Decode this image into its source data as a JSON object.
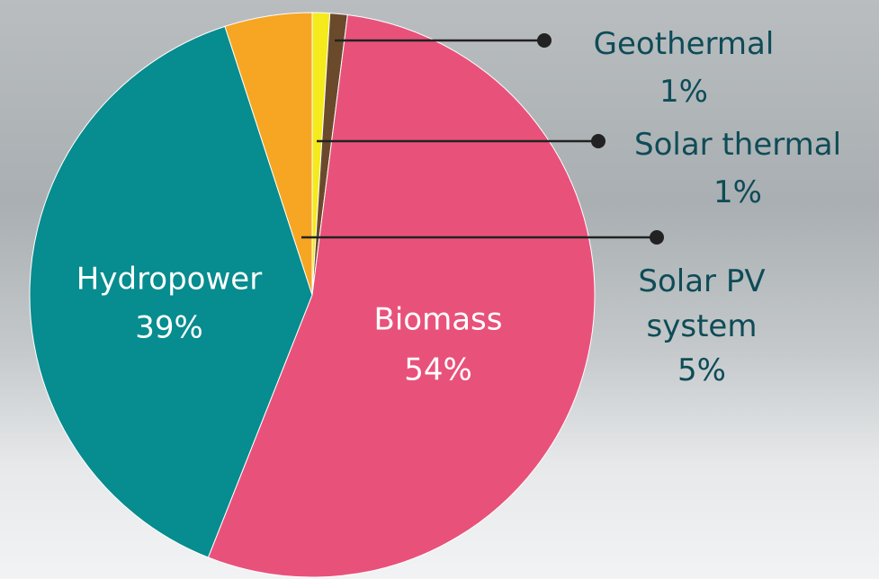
{
  "chart_data": {
    "type": "pie",
    "categories": [
      "Solar thermal",
      "Geothermal",
      "Biomass",
      "Hydropower",
      "Solar PV system"
    ],
    "values": [
      1,
      1,
      54,
      39,
      5
    ],
    "value_labels": [
      "1%",
      "1%",
      "54%",
      "39%",
      "5%"
    ],
    "colors": [
      "#f5ea1c",
      "#6b4a2c",
      "#e8527a",
      "#078c8f",
      "#f6a623"
    ]
  }
}
